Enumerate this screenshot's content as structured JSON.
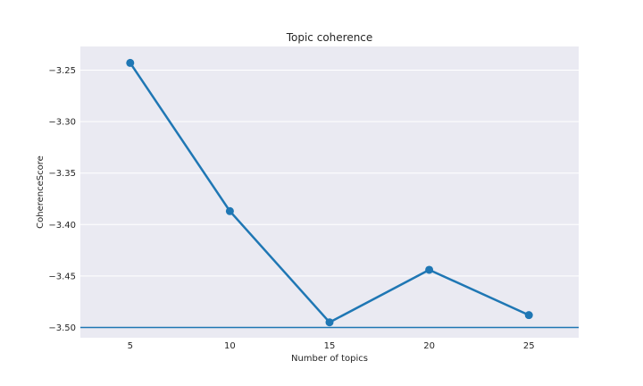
{
  "chart_data": {
    "type": "line",
    "title": "Topic coherence",
    "xlabel": "Number of topics",
    "ylabel": "CoherenceScore",
    "x": [
      5,
      10,
      15,
      20,
      25
    ],
    "series": [
      {
        "values": [
          -3.243,
          -3.387,
          -3.495,
          -3.444,
          -3.488
        ],
        "color": "#1f77b4"
      }
    ],
    "xlim": [
      2.5,
      27.5
    ],
    "ylim": [
      -3.51,
      -3.227
    ],
    "xticks": [
      5,
      10,
      15,
      20,
      25
    ],
    "xtick_labels": [
      "5",
      "10",
      "15",
      "20",
      "25"
    ],
    "yticks": [
      -3.25,
      -3.3,
      -3.35,
      -3.4,
      -3.45,
      -3.5
    ],
    "ytick_labels": [
      "−3.25",
      "−3.30",
      "−3.35",
      "−3.40",
      "−3.45",
      "−3.50"
    ],
    "reference_line": {
      "y": -3.5,
      "color": "#1f77b4"
    },
    "grid": true,
    "background": "#eaeaf2"
  }
}
